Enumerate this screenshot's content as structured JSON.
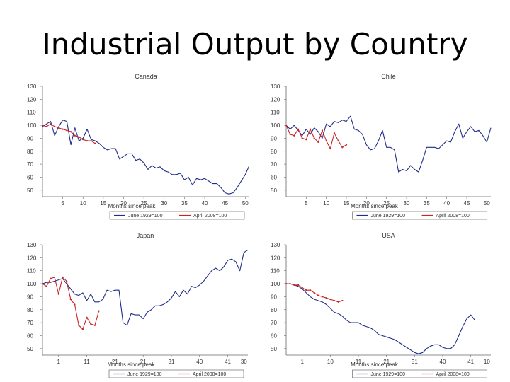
{
  "slide": {
    "title": "Industrial Output by Country"
  },
  "colors": {
    "series_1929": "#1f2d8a",
    "series_2008": "#cc2222"
  },
  "chart_data": [
    {
      "type": "line",
      "title": "Canada",
      "xlabel": "Months since peak",
      "ylabel": "",
      "xlim": [
        0,
        51
      ],
      "ylim": [
        45,
        130
      ],
      "xticks": [
        5,
        10,
        15,
        20,
        25,
        30,
        35,
        40,
        45,
        50
      ],
      "xtick_labels": [
        "5",
        "10",
        "15",
        "20",
        "25",
        "30",
        "35",
        "40",
        "45",
        "50"
      ],
      "yticks": [
        130,
        120,
        110,
        100,
        90,
        80,
        70,
        60,
        50
      ],
      "series": [
        {
          "name": "June 1929=100",
          "color": "#1f2d8a",
          "x": [
            0,
            1,
            2,
            3,
            4,
            5,
            6,
            7,
            8,
            9,
            10,
            11,
            12,
            13,
            14,
            15,
            16,
            17,
            18,
            19,
            20,
            21,
            22,
            23,
            24,
            25,
            26,
            27,
            28,
            29,
            30,
            31,
            32,
            33,
            34,
            35,
            36,
            37,
            38,
            39,
            40,
            41,
            42,
            43,
            44,
            45,
            46,
            47,
            48,
            49,
            50,
            51
          ],
          "y": [
            99,
            101,
            103,
            92,
            99,
            104,
            103,
            85,
            98,
            88,
            90,
            97,
            89,
            88,
            86,
            83,
            81,
            82,
            82,
            74,
            76,
            78,
            78,
            73,
            74,
            71,
            66,
            69,
            67,
            68,
            65,
            64,
            62,
            62,
            63,
            58,
            60,
            54,
            59,
            58,
            59,
            57,
            55,
            55,
            52,
            48,
            47,
            48,
            52,
            57,
            62,
            69
          ]
        },
        {
          "name": "April 2008=100",
          "color": "#cc2222",
          "x": [
            0,
            1,
            2,
            3,
            4,
            5,
            6,
            7,
            8,
            9,
            10,
            11,
            12,
            13
          ],
          "y": [
            100,
            99,
            101,
            99,
            98,
            97,
            96,
            95,
            92,
            91,
            89,
            88,
            88,
            86
          ]
        }
      ],
      "legend": [
        "June 1929=100",
        "April 2008=100"
      ]
    },
    {
      "type": "line",
      "title": "Chile",
      "xlabel": "Months since peak",
      "ylabel": "",
      "xlim": [
        0,
        51
      ],
      "ylim": [
        45,
        130
      ],
      "xticks": [
        5,
        10,
        15,
        20,
        25,
        30,
        35,
        40,
        45,
        50
      ],
      "xtick_labels": [
        "5",
        "10",
        "15",
        "20",
        "25",
        "30",
        "35",
        "40",
        "45",
        "50"
      ],
      "yticks": [
        130,
        120,
        110,
        100,
        90,
        80,
        70,
        60,
        50
      ],
      "series": [
        {
          "name": "June 1929=100",
          "color": "#1f2d8a",
          "x": [
            0,
            1,
            2,
            3,
            4,
            5,
            6,
            7,
            8,
            9,
            10,
            11,
            12,
            13,
            14,
            15,
            16,
            17,
            18,
            19,
            20,
            21,
            22,
            23,
            24,
            25,
            26,
            27,
            28,
            29,
            30,
            31,
            32,
            33,
            34,
            35,
            36,
            37,
            38,
            39,
            40,
            41,
            42,
            43,
            44,
            45,
            46,
            47,
            48,
            49,
            50,
            51
          ],
          "y": [
            100,
            97,
            100,
            96,
            92,
            97,
            93,
            98,
            95,
            90,
            101,
            99,
            103,
            102,
            104,
            103,
            107,
            97,
            96,
            93,
            85,
            81,
            82,
            88,
            96,
            83,
            83,
            81,
            64,
            66,
            65,
            69,
            66,
            64,
            73,
            83,
            83,
            83,
            82,
            85,
            88,
            87,
            95,
            101,
            90,
            95,
            99,
            95,
            96,
            92,
            87,
            98
          ]
        },
        {
          "name": "April 2008=100",
          "color": "#cc2222",
          "x": [
            0,
            1,
            2,
            3,
            4,
            5,
            6,
            7,
            8,
            9,
            10,
            11,
            12,
            13,
            14,
            15
          ],
          "y": [
            100,
            93,
            92,
            97,
            90,
            89,
            97,
            90,
            87,
            96,
            88,
            82,
            94,
            88,
            83,
            85
          ]
        }
      ],
      "legend": [
        "June 1929=100",
        "April 2008=100"
      ]
    },
    {
      "type": "line",
      "title": "Japan",
      "xlabel": "Months since peak",
      "ylabel": "",
      "xlim": [
        0,
        51
      ],
      "ylim": [
        45,
        130
      ],
      "xticks": [
        4,
        11,
        18,
        25,
        32,
        39,
        46,
        50
      ],
      "xtick_labels": [
        "1",
        "11",
        "21",
        "21",
        "31",
        "40",
        "41",
        "30"
      ],
      "yticks": [
        130,
        120,
        110,
        100,
        90,
        80,
        70,
        60,
        50
      ],
      "series": [
        {
          "name": "June 1929=100",
          "color": "#1f2d8a",
          "x": [
            0,
            1,
            2,
            3,
            4,
            5,
            6,
            7,
            8,
            9,
            10,
            11,
            12,
            13,
            14,
            15,
            16,
            17,
            18,
            19,
            20,
            21,
            22,
            23,
            24,
            25,
            26,
            27,
            28,
            29,
            30,
            31,
            32,
            33,
            34,
            35,
            36,
            37,
            38,
            39,
            40,
            41,
            42,
            43,
            44,
            45,
            46,
            47,
            48,
            49,
            50,
            51
          ],
          "y": [
            100,
            101,
            101,
            102,
            103,
            104,
            100,
            96,
            92,
            91,
            93,
            87,
            92,
            86,
            86,
            88,
            95,
            94,
            95,
            95,
            70,
            68,
            77,
            76,
            76,
            73,
            78,
            80,
            83,
            83,
            84,
            86,
            89,
            94,
            90,
            95,
            92,
            98,
            97,
            99,
            102,
            106,
            110,
            112,
            110,
            113,
            118,
            119,
            117,
            110,
            124,
            126
          ]
        },
        {
          "name": "April 2008=100",
          "color": "#cc2222",
          "x": [
            0,
            1,
            2,
            3,
            4,
            5,
            6,
            7,
            8,
            9,
            10,
            11,
            12,
            13,
            14
          ],
          "y": [
            100,
            98,
            104,
            105,
            92,
            105,
            102,
            88,
            84,
            68,
            65,
            74,
            69,
            68,
            79
          ]
        }
      ],
      "legend": [
        "June 1929=100",
        "April 2008=100"
      ]
    },
    {
      "type": "line",
      "title": "USA",
      "xlabel": "Months since peak",
      "ylabel": "",
      "xlim": [
        0,
        51
      ],
      "ylim": [
        45,
        130
      ],
      "xticks": [
        4,
        11,
        18,
        25,
        32,
        39,
        46,
        50
      ],
      "xtick_labels": [
        "1",
        "10",
        "11",
        "21",
        "31",
        "40",
        "41",
        "10"
      ],
      "yticks": [
        130,
        120,
        110,
        100,
        90,
        80,
        70,
        60,
        50
      ],
      "series": [
        {
          "name": "June 1929=100",
          "color": "#1f2d8a",
          "x": [
            0,
            1,
            2,
            3,
            4,
            5,
            6,
            7,
            8,
            9,
            10,
            11,
            12,
            13,
            14,
            15,
            16,
            17,
            18,
            19,
            20,
            21,
            22,
            23,
            24,
            25,
            26,
            27,
            28,
            29,
            30,
            31,
            32,
            33,
            34,
            35,
            36,
            37,
            38,
            39,
            40,
            41,
            42,
            43,
            44,
            45,
            46,
            47,
            48,
            49,
            50,
            51
          ],
          "y": [
            100,
            100,
            99,
            98,
            96,
            93,
            90,
            88,
            87,
            86,
            84,
            81,
            78,
            77,
            75,
            72,
            70,
            70,
            70,
            68,
            67,
            66,
            64,
            61,
            60,
            59,
            58,
            57,
            55,
            53,
            51,
            49,
            47,
            46,
            47,
            50,
            52,
            53,
            53,
            51,
            50,
            50,
            53,
            60,
            67,
            73,
            76,
            72,
            null,
            null,
            null,
            null
          ]
        },
        {
          "name": "April 2008=100",
          "color": "#cc2222",
          "x": [
            0,
            1,
            2,
            3,
            4,
            5,
            6,
            7,
            8,
            9,
            10,
            11,
            12,
            13,
            14
          ],
          "y": [
            100,
            100,
            99,
            99,
            97,
            95,
            95,
            93,
            91,
            90,
            89,
            88,
            87,
            86,
            87
          ]
        }
      ],
      "legend": [
        "June 1929=100",
        "April 2008=100"
      ]
    }
  ]
}
